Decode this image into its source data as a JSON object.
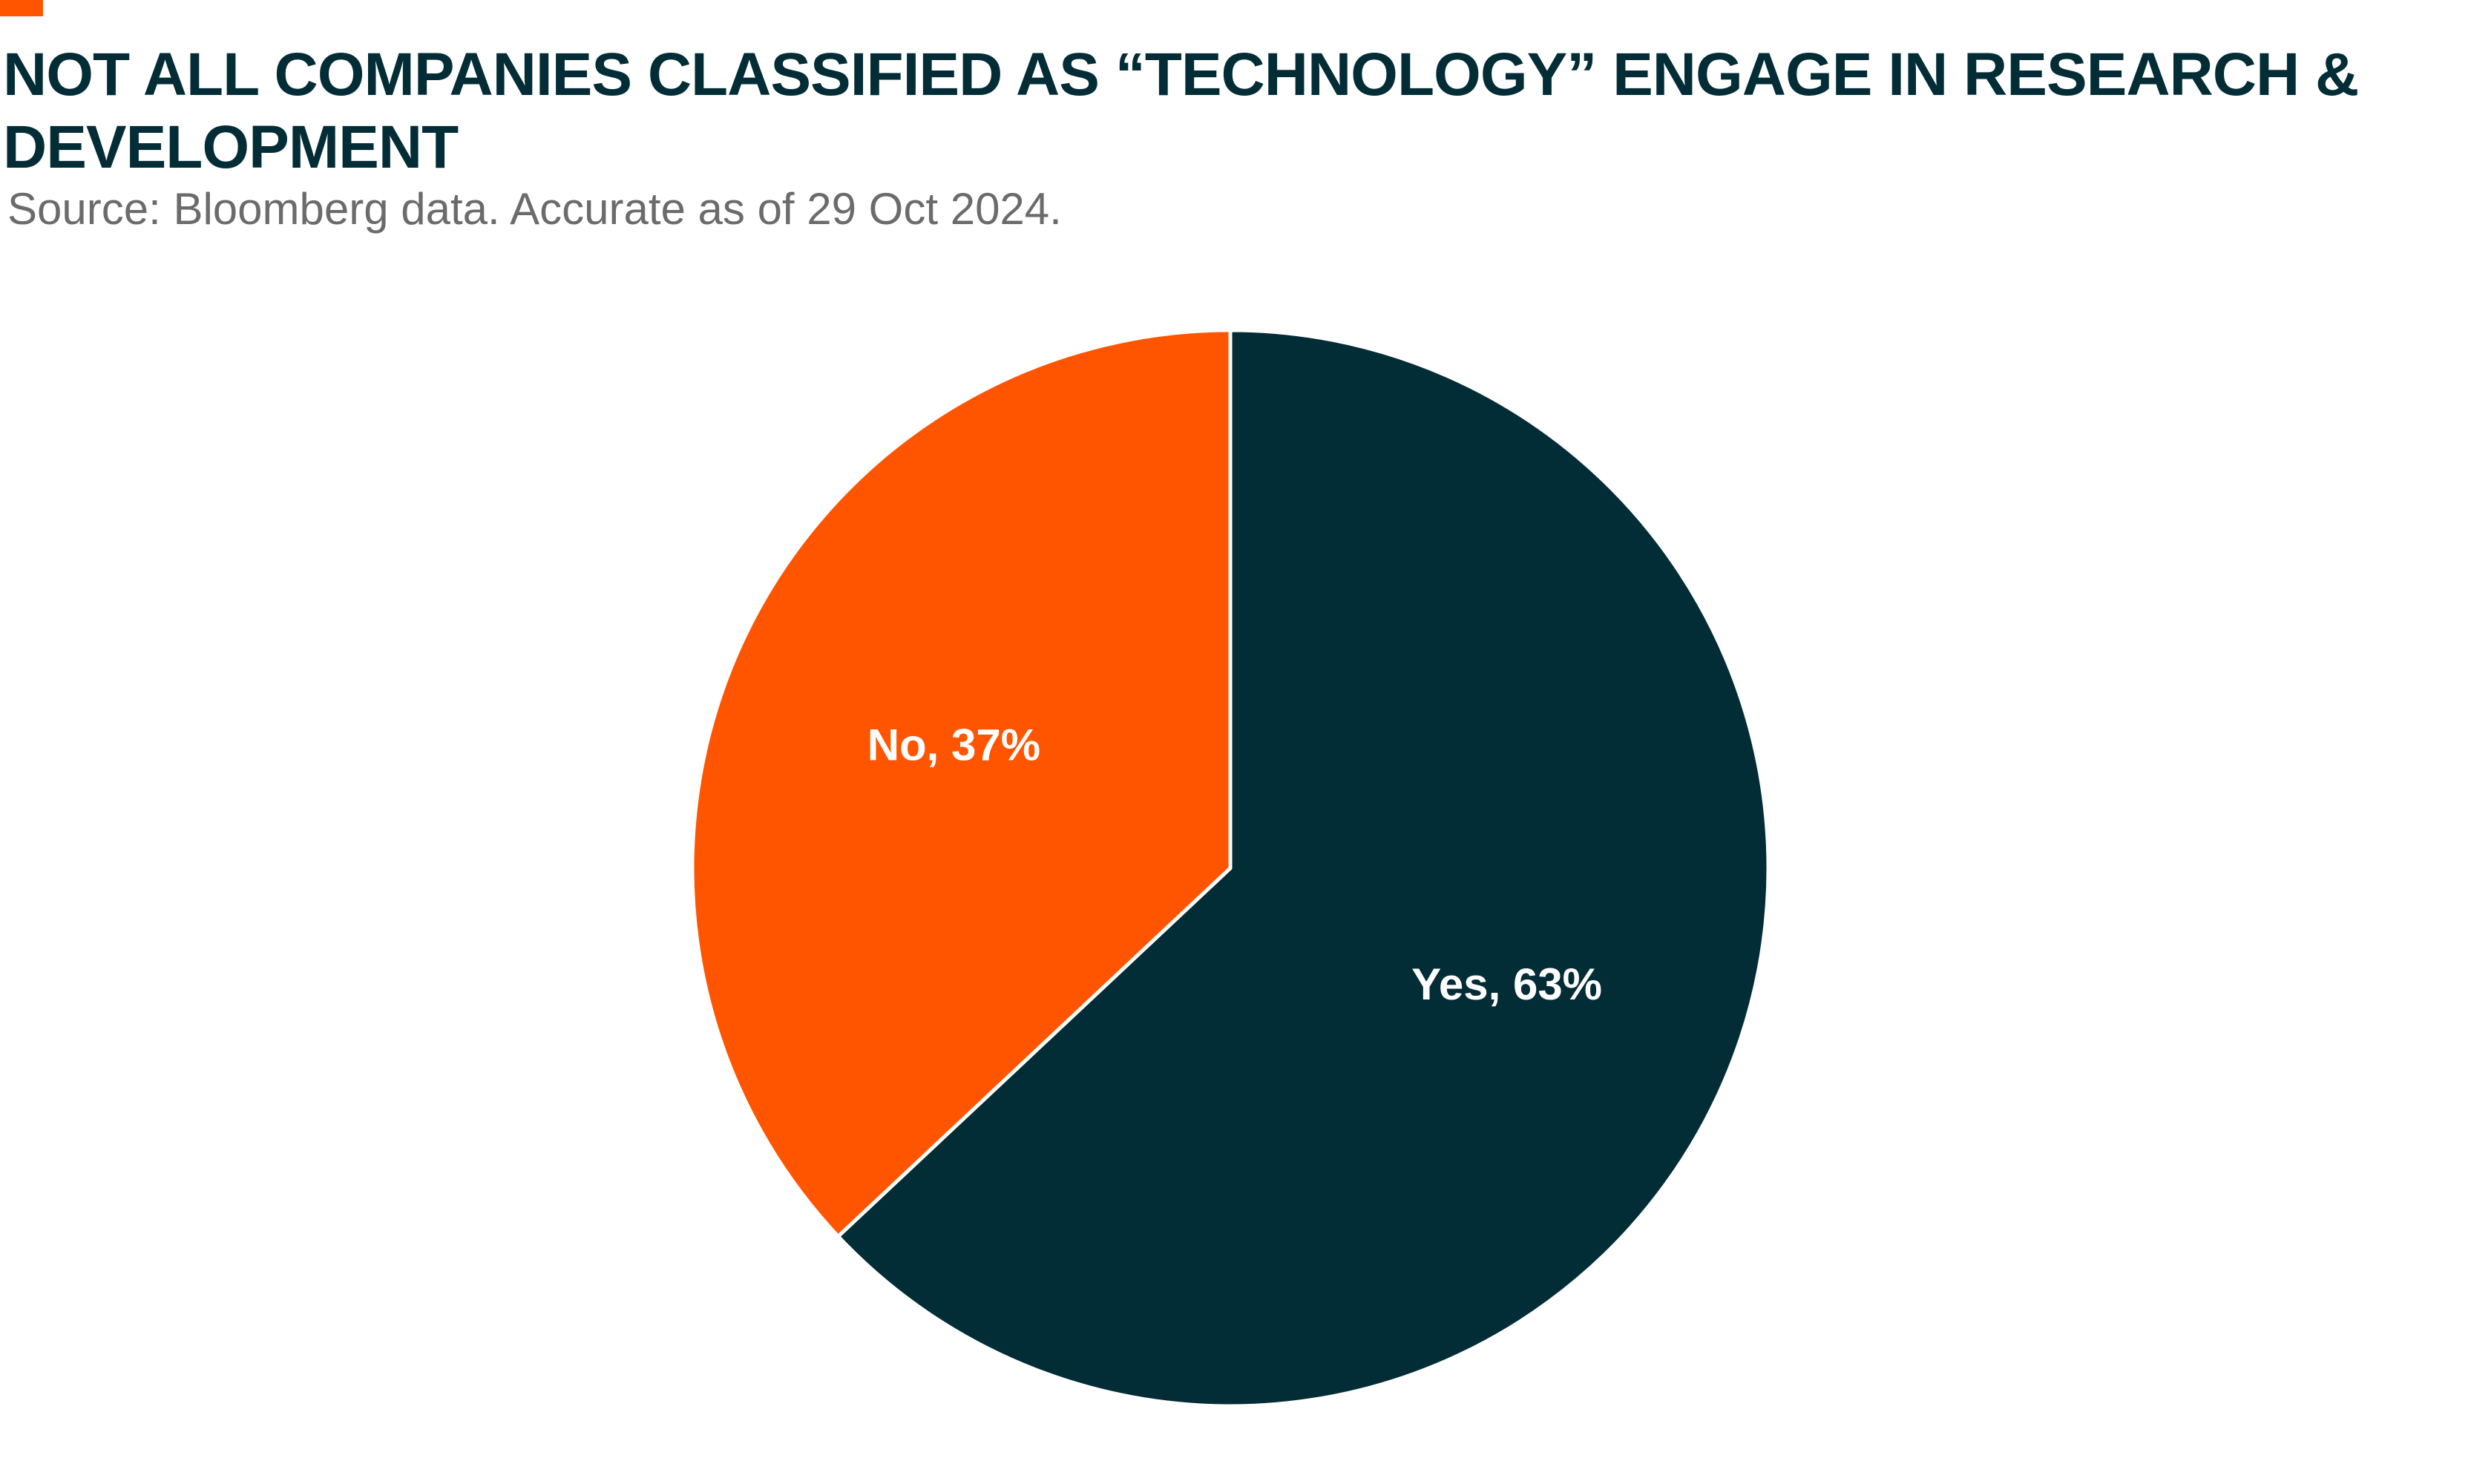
{
  "chart_data": {
    "type": "pie",
    "title": "NOT ALL COMPANIES CLASSIFIED AS “TECHNOLOGY” ENGAGE IN RESEARCH & DEVELOPMENT",
    "subtitle": "Source: Bloomberg data. Accurate as of 29 Oct 2024.",
    "slices": [
      {
        "label": "Yes",
        "value": 63,
        "data_label": "Yes, 63%",
        "color": "#032d36"
      },
      {
        "label": "No",
        "value": 37,
        "data_label": "No, 37%",
        "color": "#ff5500"
      }
    ],
    "start": "12 o'clock",
    "direction": "clockwise",
    "legend": "none"
  },
  "colors": {
    "accent": "#ff5500",
    "title": "#032d36",
    "subtitle": "#6b6b6b",
    "slice_border": "#ffffff"
  }
}
